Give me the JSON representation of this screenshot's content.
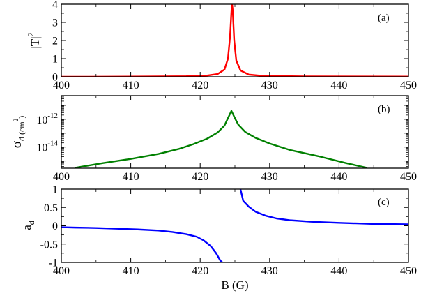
{
  "chart_data": [
    {
      "type": "line",
      "panel": "(a)",
      "xlabel": "B (G)",
      "ylabel": "|T|",
      "ylabel_sup": "2",
      "xlim": [
        400,
        450
      ],
      "ylim": [
        0,
        4
      ],
      "xticks": [
        "400",
        "410",
        "420",
        "430",
        "440",
        "450"
      ],
      "yticks": [
        "0",
        "1",
        "2",
        "3",
        "4"
      ],
      "series": [
        {
          "color": "#ff0000",
          "x": [
            400,
            410,
            418,
            421,
            422.5,
            423.5,
            424,
            424.3,
            424.5,
            424.6,
            424.7,
            424.9,
            425.2,
            425.8,
            427,
            429,
            435,
            450
          ],
          "y": [
            0.0,
            0.01,
            0.03,
            0.07,
            0.15,
            0.4,
            1.0,
            2.2,
            3.6,
            4.0,
            3.6,
            2.0,
            0.9,
            0.35,
            0.12,
            0.05,
            0.02,
            0.01
          ]
        }
      ]
    },
    {
      "type": "line",
      "panel": "(b)",
      "xlabel": "",
      "ylabel": "σ",
      "ylabel_sub": "d (cm",
      "ylabel_sup": "2",
      "ylabel_close": ")",
      "xlim": [
        400,
        450
      ],
      "yscale": "log",
      "ylim": [
        3e-16,
        5e-11
      ],
      "xticks": [
        "400",
        "410",
        "420",
        "430",
        "440",
        "450"
      ],
      "yticks": [
        {
          "base": "10",
          "exp": "-12",
          "value": 1e-12
        },
        {
          "base": "10",
          "exp": "-14",
          "value": 1e-14
        }
      ],
      "series": [
        {
          "color": "#008000",
          "x": [
            402,
            406,
            410,
            414,
            417,
            419,
            421,
            422.5,
            423.5,
            424,
            424.5,
            425,
            425.5,
            426.5,
            428,
            430,
            433,
            437,
            441,
            444
          ],
          "y": [
            3.2e-16,
            7e-16,
            1.4e-15,
            3.2e-15,
            7.5e-15,
            1.6e-14,
            4e-14,
            1.1e-13,
            3.5e-13,
            1.2e-12,
            4e-12,
            1.2e-12,
            4e-13,
            1.2e-13,
            4.5e-14,
            1.8e-14,
            6e-15,
            2.2e-15,
            7e-16,
            3.2e-16
          ]
        }
      ]
    },
    {
      "type": "line",
      "panel": "(c)",
      "xlabel": "B (G)",
      "ylabel": "a",
      "ylabel_sub": "d",
      "xlim": [
        400,
        450
      ],
      "ylim": [
        -1,
        1
      ],
      "xticks": [
        "400",
        "410",
        "420",
        "430",
        "440",
        "450"
      ],
      "yticks": [
        "-1",
        "-0.5",
        "0",
        "0.5",
        "1"
      ],
      "series": [
        {
          "color": "#0000ff",
          "x": [
            400,
            402,
            405,
            408,
            411,
            414,
            416,
            418,
            419.5,
            420.5,
            421.5,
            422.3,
            422.9,
            423.2
          ],
          "y": [
            -0.04,
            -0.05,
            -0.06,
            -0.08,
            -0.1,
            -0.13,
            -0.17,
            -0.23,
            -0.3,
            -0.4,
            -0.55,
            -0.75,
            -0.95,
            -1.0
          ]
        },
        {
          "color": "#0000ff",
          "x": [
            425.8,
            426.2,
            427,
            428,
            429.5,
            431,
            433,
            436,
            440,
            445,
            450
          ],
          "y": [
            1.0,
            0.68,
            0.52,
            0.38,
            0.27,
            0.2,
            0.15,
            0.11,
            0.08,
            0.05,
            0.04
          ]
        }
      ]
    }
  ]
}
